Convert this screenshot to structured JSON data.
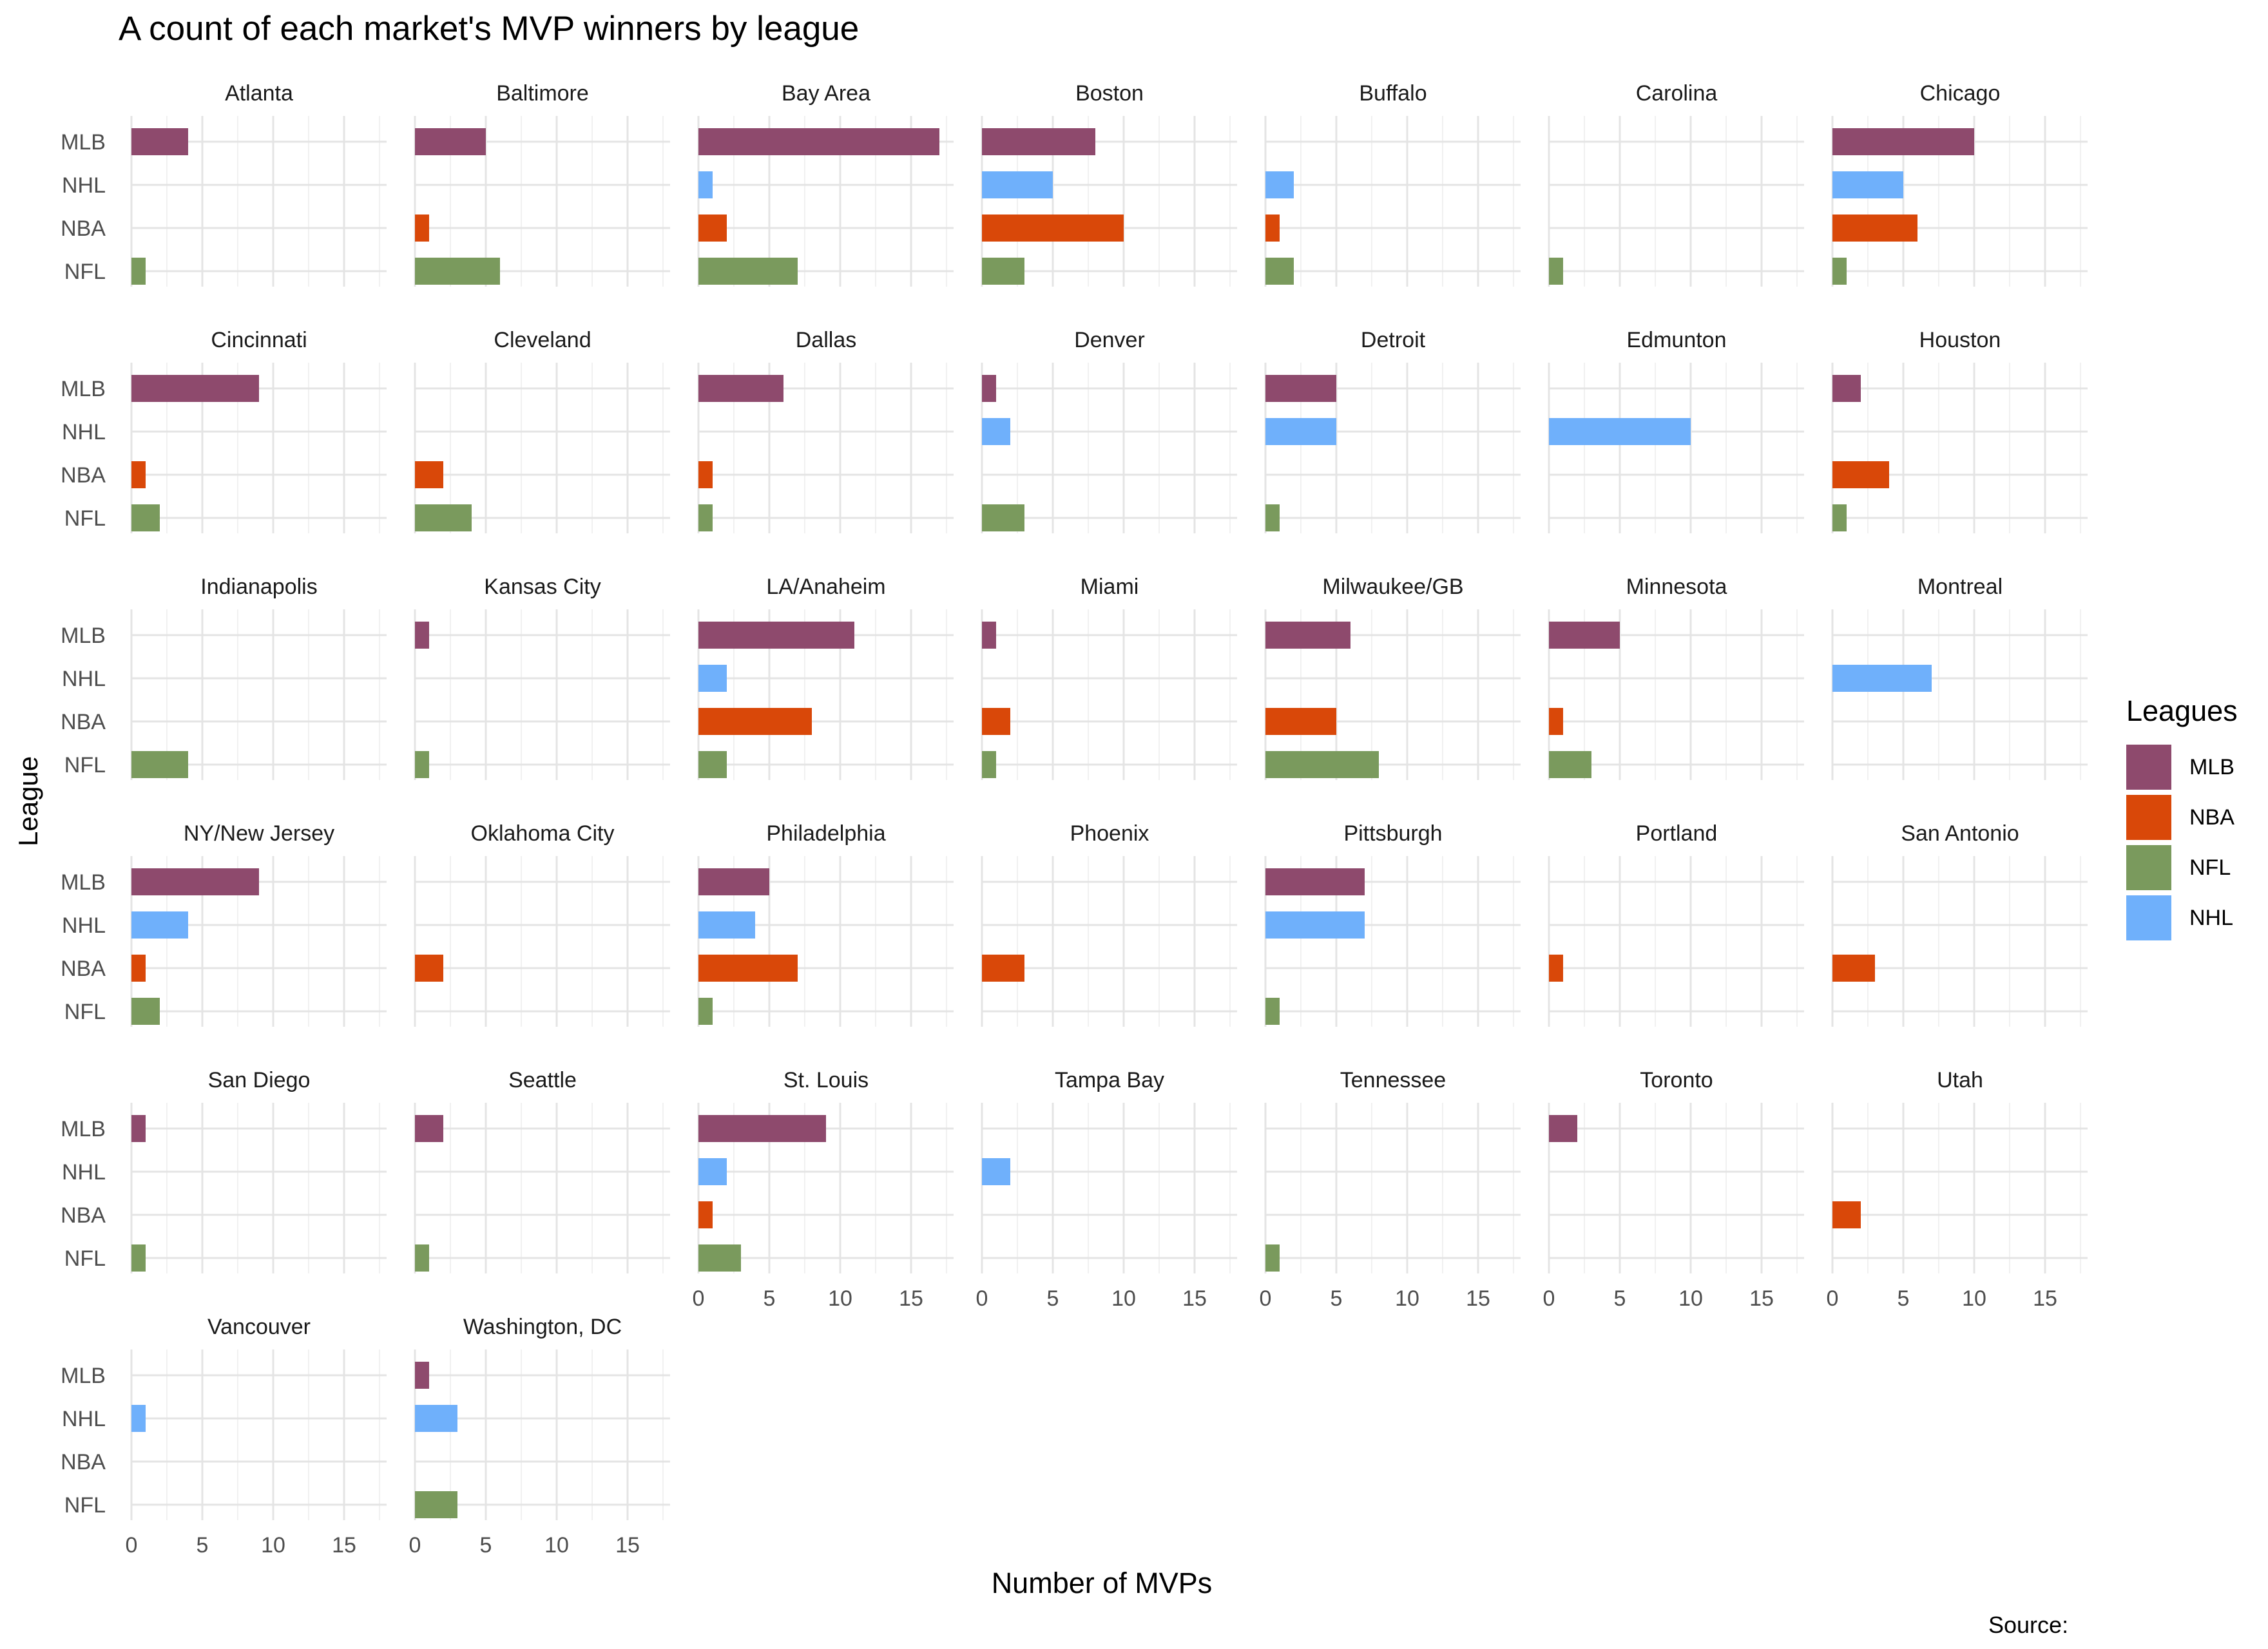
{
  "title": "A count of each market's MVP winners by league",
  "source": "Source:",
  "chart_data": {
    "type": "bar",
    "orientation": "horizontal",
    "facet_by": "market",
    "title": "A count of each market's MVP winners by league",
    "xlabel": "Number of MVPs",
    "ylabel": "League",
    "xlim": [
      0,
      18
    ],
    "x_ticks": [
      0,
      5,
      10,
      15
    ],
    "categories": [
      "MLB",
      "NHL",
      "NBA",
      "NFL"
    ],
    "legend": {
      "title": "Leagues",
      "position": "right",
      "entries": [
        "MLB",
        "NBA",
        "NFL",
        "NHL"
      ]
    },
    "colors": {
      "MLB": "#8e4a6d",
      "NBA": "#d94809",
      "NFL": "#7a9a5d",
      "NHL": "#6fb0fb"
    },
    "grid": true,
    "facets": [
      {
        "market": "Atlanta",
        "values": [
          4,
          0,
          0,
          1
        ]
      },
      {
        "market": "Baltimore",
        "values": [
          5,
          0,
          1,
          6
        ]
      },
      {
        "market": "Bay Area",
        "values": [
          17,
          1,
          2,
          7
        ]
      },
      {
        "market": "Boston",
        "values": [
          8,
          5,
          10,
          3
        ]
      },
      {
        "market": "Buffalo",
        "values": [
          0,
          2,
          1,
          2
        ]
      },
      {
        "market": "Carolina",
        "values": [
          0,
          0,
          0,
          1
        ]
      },
      {
        "market": "Chicago",
        "values": [
          10,
          5,
          6,
          1
        ]
      },
      {
        "market": "Cincinnati",
        "values": [
          9,
          0,
          1,
          2
        ]
      },
      {
        "market": "Cleveland",
        "values": [
          0,
          0,
          2,
          4
        ]
      },
      {
        "market": "Dallas",
        "values": [
          6,
          0,
          1,
          1
        ]
      },
      {
        "market": "Denver",
        "values": [
          1,
          2,
          0,
          3
        ]
      },
      {
        "market": "Detroit",
        "values": [
          5,
          5,
          0,
          1
        ]
      },
      {
        "market": "Edmunton",
        "values": [
          0,
          10,
          0,
          0
        ]
      },
      {
        "market": "Houston",
        "values": [
          2,
          0,
          4,
          1
        ]
      },
      {
        "market": "Indianapolis",
        "values": [
          0,
          0,
          0,
          4
        ]
      },
      {
        "market": "Kansas City",
        "values": [
          1,
          0,
          0,
          1
        ]
      },
      {
        "market": "LA/Anaheim",
        "values": [
          11,
          2,
          8,
          2
        ]
      },
      {
        "market": "Miami",
        "values": [
          1,
          0,
          2,
          1
        ]
      },
      {
        "market": "Milwaukee/GB",
        "values": [
          6,
          0,
          5,
          8
        ]
      },
      {
        "market": "Minnesota",
        "values": [
          5,
          0,
          1,
          3
        ]
      },
      {
        "market": "Montreal",
        "values": [
          0,
          7,
          0,
          0
        ]
      },
      {
        "market": "NY/New Jersey",
        "values": [
          9,
          4,
          1,
          2
        ]
      },
      {
        "market": "Oklahoma City",
        "values": [
          0,
          0,
          2,
          0
        ]
      },
      {
        "market": "Philadelphia",
        "values": [
          5,
          4,
          7,
          1
        ]
      },
      {
        "market": "Phoenix",
        "values": [
          0,
          0,
          3,
          0
        ]
      },
      {
        "market": "Pittsburgh",
        "values": [
          7,
          7,
          0,
          1
        ]
      },
      {
        "market": "Portland",
        "values": [
          0,
          0,
          1,
          0
        ]
      },
      {
        "market": "San Antonio",
        "values": [
          0,
          0,
          3,
          0
        ]
      },
      {
        "market": "San Diego",
        "values": [
          1,
          0,
          0,
          1
        ]
      },
      {
        "market": "Seattle",
        "values": [
          2,
          0,
          0,
          1
        ]
      },
      {
        "market": "St. Louis",
        "values": [
          9,
          2,
          1,
          3
        ]
      },
      {
        "market": "Tampa Bay",
        "values": [
          0,
          2,
          0,
          0
        ]
      },
      {
        "market": "Tennessee",
        "values": [
          0,
          0,
          0,
          1
        ]
      },
      {
        "market": "Toronto",
        "values": [
          2,
          0,
          0,
          0
        ]
      },
      {
        "market": "Utah",
        "values": [
          0,
          0,
          2,
          0
        ]
      },
      {
        "market": "Vancouver",
        "values": [
          0,
          1,
          0,
          0
        ]
      },
      {
        "market": "Washington, DC",
        "values": [
          1,
          3,
          0,
          3
        ]
      }
    ]
  }
}
